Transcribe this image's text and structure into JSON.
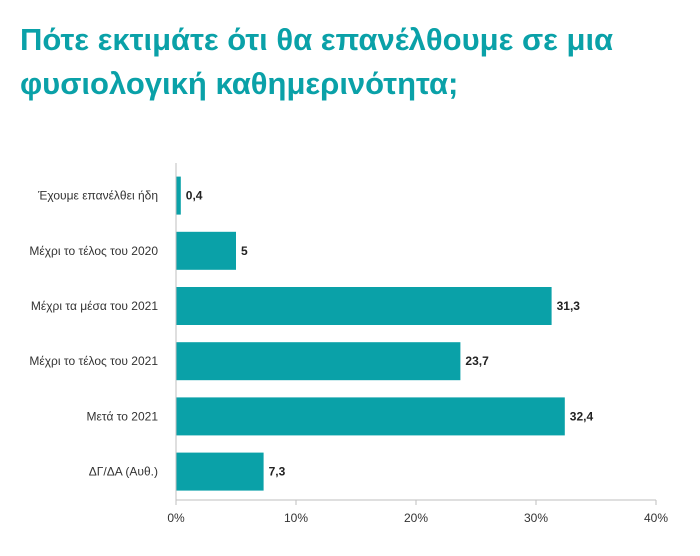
{
  "title_lines": [
    "Πότε εκτιμάτε ότι θα επανέλθουμε σε μια",
    "φυσιολογική καθημερινότητα;"
  ],
  "colors": {
    "title": "#0aa1a8",
    "bar": "#0aa1a8",
    "axis": "#bfbfbf"
  },
  "chart_data": {
    "type": "bar",
    "orientation": "horizontal",
    "categories": [
      "Έχουμε επανέλθει ήδη",
      "Μέχρι το τέλος του 2020",
      "Μέχρι τα μέσα του 2021",
      "Μέχρι το τέλος του 2021",
      "Μετά το 2021",
      "ΔΓ/ΔΑ (Αυθ.)"
    ],
    "values": [
      0.4,
      5,
      31.3,
      23.7,
      32.4,
      7.3
    ],
    "value_labels": [
      "0,4",
      "5",
      "31,3",
      "23,7",
      "32,4",
      "7,3"
    ],
    "xlim": [
      0,
      40
    ],
    "xticks": [
      0,
      10,
      20,
      30,
      40
    ],
    "xtick_labels": [
      "0%",
      "10%",
      "20%",
      "30%",
      "40%"
    ],
    "grid": false,
    "legend": "none"
  }
}
